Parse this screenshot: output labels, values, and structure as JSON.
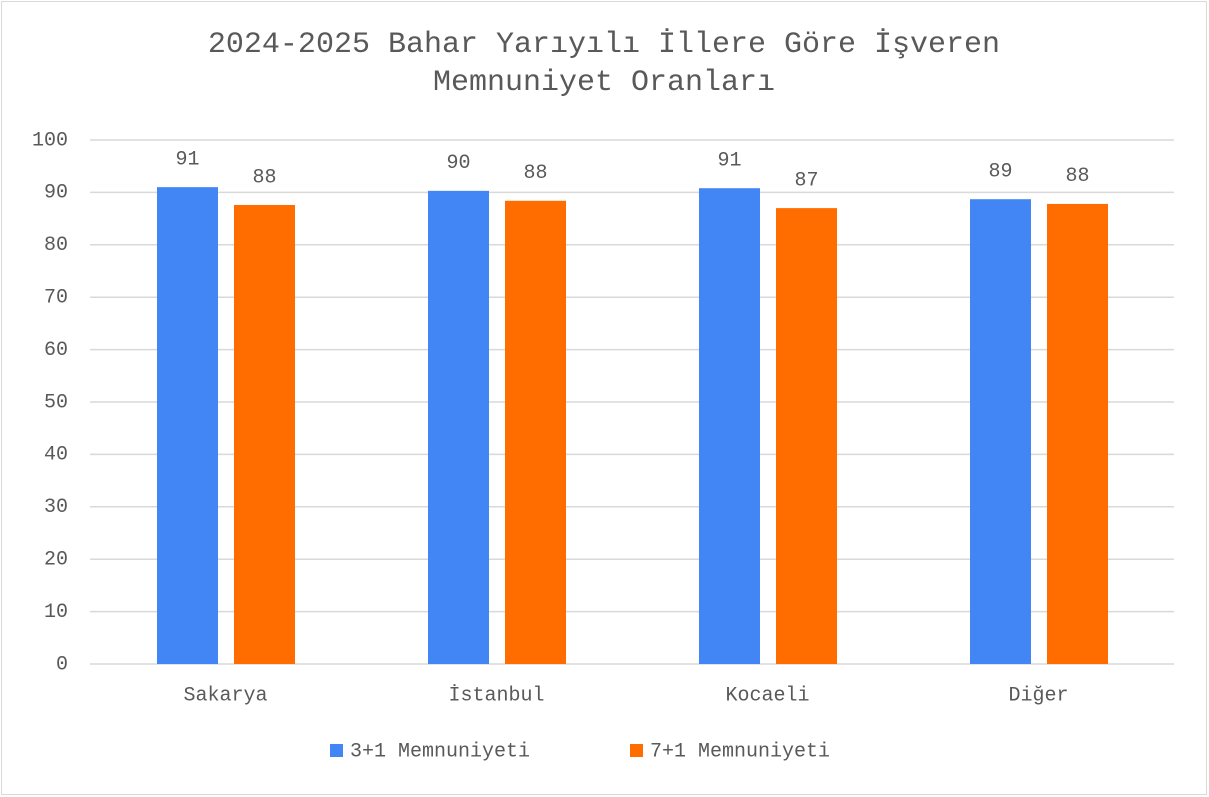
{
  "chart_data": {
    "type": "bar",
    "title": "2024-2025 Bahar Yarıyılı İllere Göre İşveren Memnuniyet Oranları",
    "categories": [
      "Sakarya",
      "İstanbul",
      "Kocaeli",
      "Diğer"
    ],
    "series": [
      {
        "name": "3+1 Memnuniyeti",
        "color": "#4285f4",
        "values": [
          91.0,
          90.3,
          90.8,
          88.7
        ],
        "value_labels": [
          "91",
          "90",
          "91",
          "89"
        ]
      },
      {
        "name": "7+1 Memnuniyeti",
        "color": "#ff6d01",
        "values": [
          87.6,
          88.4,
          87.0,
          87.8
        ],
        "value_labels": [
          "88",
          "88",
          "87",
          "88"
        ]
      }
    ],
    "ylim": [
      0,
      100
    ],
    "yticks": [
      0,
      10,
      20,
      30,
      40,
      50,
      60,
      70,
      80,
      90,
      100
    ],
    "grid": true,
    "legend": "bottom"
  }
}
